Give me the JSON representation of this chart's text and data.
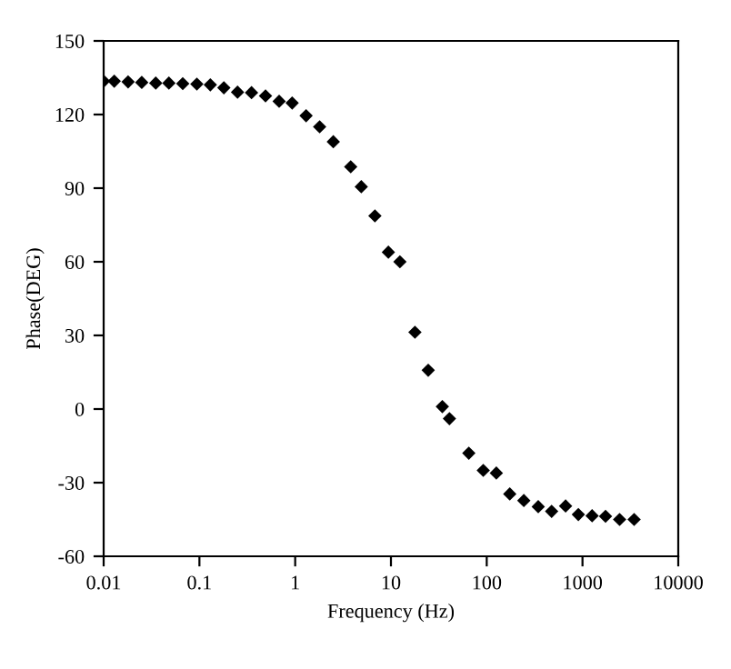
{
  "chart_data": {
    "type": "scatter",
    "xlabel": "Frequency (Hz)",
    "ylabel": "Phase(DEG)",
    "log": "x",
    "marker": "diamond",
    "grid": false,
    "legend": false,
    "x": [
      0.01,
      0.0129,
      0.018,
      0.025,
      0.035,
      0.048,
      0.067,
      0.094,
      0.13,
      0.18,
      0.25,
      0.35,
      0.49,
      0.68,
      0.93,
      1.3,
      1.8,
      2.5,
      3.8,
      4.9,
      6.8,
      9.4,
      12.4,
      17.8,
      24.5,
      34.4,
      40.8,
      65,
      92,
      126,
      174,
      244,
      345,
      476,
      666,
      905,
      1260,
      1740,
      2440,
      3460
    ],
    "series": [
      {
        "color": "#000000",
        "values": [
          133.6,
          133.6,
          133.3,
          133.1,
          132.8,
          132.8,
          132.6,
          132.4,
          132.1,
          130.9,
          129.1,
          128.9,
          127.6,
          125.4,
          124.7,
          119.5,
          115,
          108.9,
          98.7,
          90.6,
          78.7,
          63.9,
          60,
          31.3,
          15.8,
          1,
          -3.9,
          -18,
          -25,
          -26.1,
          -34.6,
          -37.3,
          -39.8,
          -41.7,
          -39.5,
          -43,
          -43.5,
          -43.7,
          -45,
          -45
        ]
      }
    ],
    "xlim": [
      0.01,
      10000
    ],
    "xticks": [
      0.01,
      0.1,
      1,
      10,
      100,
      1000,
      10000
    ],
    "ylim": [
      -60,
      150
    ],
    "yticks": [
      -60,
      -30,
      0,
      30,
      60,
      90,
      120,
      150
    ]
  }
}
